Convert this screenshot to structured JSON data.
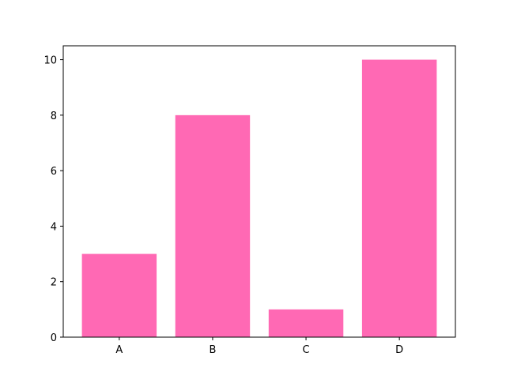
{
  "chart_data": {
    "type": "bar",
    "categories": [
      "A",
      "B",
      "C",
      "D"
    ],
    "values": [
      3,
      8,
      1,
      10
    ],
    "title": "",
    "xlabel": "",
    "ylabel": "",
    "ylim": [
      0,
      10.5
    ],
    "yticks": [
      0,
      2,
      4,
      6,
      8,
      10
    ],
    "grid": false,
    "bar_color": "#ff69b4"
  }
}
